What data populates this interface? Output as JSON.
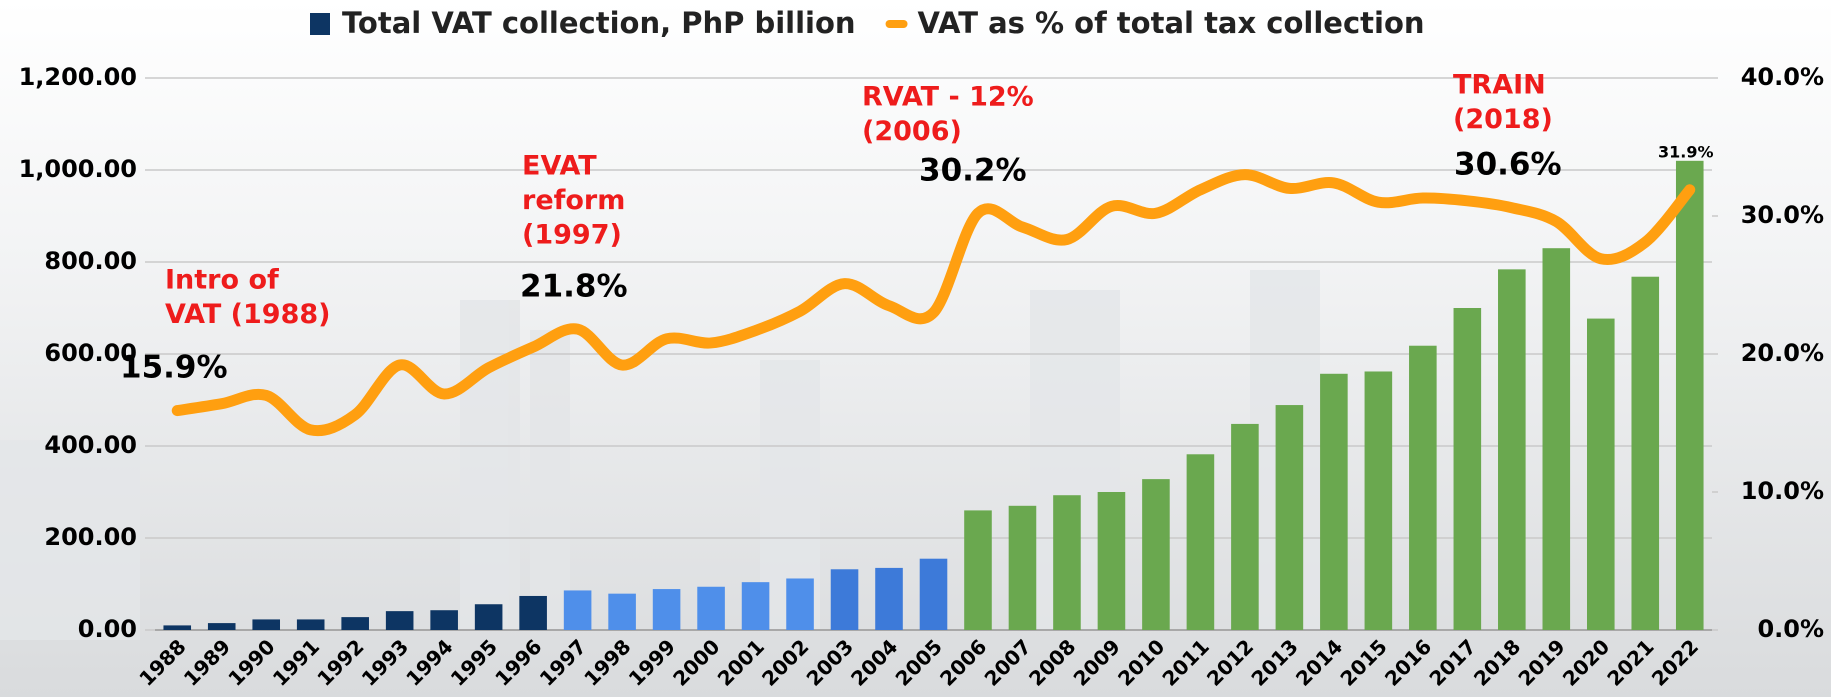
{
  "chart_data": {
    "type": "bar-line",
    "categories": [
      "1988",
      "1989",
      "1990",
      "1991",
      "1992",
      "1993",
      "1994",
      "1995",
      "1996",
      "1997",
      "1998",
      "1999",
      "2000",
      "2001",
      "2002",
      "2003",
      "2004",
      "2005",
      "2006",
      "2007",
      "2008",
      "2009",
      "2010",
      "2011",
      "2012",
      "2013",
      "2014",
      "2015",
      "2016",
      "2017",
      "2018",
      "2019",
      "2020",
      "2021",
      "2022"
    ],
    "series": [
      {
        "name": "Total VAT collection, PhP billion",
        "type": "bar",
        "color": "#0d3563",
        "colors": [
          "#0d3563",
          "#0d3563",
          "#0d3563",
          "#0d3563",
          "#0d3563",
          "#0d3563",
          "#0d3563",
          "#0d3563",
          "#0d3563",
          "#4f8fea",
          "#4f8fea",
          "#4f8fea",
          "#4f8fea",
          "#4f8fea",
          "#4f8fea",
          "#3d7ad9",
          "#3d7ad9",
          "#3d7ad9",
          "#6aa84f",
          "#6aa84f",
          "#6aa84f",
          "#6aa84f",
          "#6aa84f",
          "#6aa84f",
          "#6aa84f",
          "#6aa84f",
          "#6aa84f",
          "#6aa84f",
          "#6aa84f",
          "#6aa84f",
          "#6aa84f",
          "#6aa84f",
          "#6aa84f",
          "#6aa84f",
          "#6aa84f"
        ],
        "values": [
          10,
          15,
          23,
          23,
          28,
          41,
          43,
          56,
          74,
          86,
          79,
          89,
          94,
          104,
          112,
          132,
          135,
          155,
          260,
          270,
          293,
          300,
          328,
          382,
          448,
          489,
          557,
          562,
          618,
          700,
          784,
          830,
          677,
          768,
          1020
        ]
      },
      {
        "name": "VAT as % of total tax collection",
        "type": "line",
        "color": "#ff9f10",
        "axis": "y2",
        "values": [
          15.9,
          16.4,
          17.0,
          14.5,
          15.6,
          19.2,
          17.1,
          19.0,
          20.5,
          21.8,
          19.2,
          21.1,
          20.8,
          21.7,
          23.1,
          25.1,
          23.5,
          23.0,
          30.2,
          29.2,
          28.3,
          30.7,
          30.2,
          31.9,
          33.0,
          32.0,
          32.4,
          31.0,
          31.3,
          31.1,
          30.6,
          29.6,
          26.9,
          28.1,
          31.9
        ],
        "value_labels": [
          "15.9%",
          null,
          null,
          null,
          null,
          null,
          null,
          null,
          null,
          "21.8%",
          null,
          null,
          null,
          null,
          null,
          null,
          null,
          null,
          "30.2%",
          null,
          null,
          null,
          null,
          null,
          null,
          null,
          null,
          null,
          null,
          null,
          "30.6%",
          null,
          null,
          null,
          "31.9%"
        ]
      }
    ],
    "ylim": [
      0,
      1200
    ],
    "yticks": [
      {
        "value": 0,
        "label": "0.00"
      },
      {
        "value": 200,
        "label": "200.00"
      },
      {
        "value": 400,
        "label": "400.00"
      },
      {
        "value": 600,
        "label": "600.00"
      },
      {
        "value": 800,
        "label": "800.00"
      },
      {
        "value": 1000,
        "label": "1,000.00"
      },
      {
        "value": 1200,
        "label": "1,200.00"
      }
    ],
    "y2lim": [
      0,
      40
    ],
    "y2ticks": [
      {
        "value": 0,
        "label": "0.0%"
      },
      {
        "value": 10,
        "label": "10.0%"
      },
      {
        "value": 20,
        "label": "20.0%"
      },
      {
        "value": 30,
        "label": "30.0%"
      },
      {
        "value": 40,
        "label": "40.0%"
      }
    ],
    "grid": true,
    "legend": "top",
    "annotations": [
      {
        "lines": [
          "Intro of",
          "VAT (1988)"
        ]
      },
      {
        "lines": [
          "EVAT",
          "reform",
          "(1997)"
        ]
      },
      {
        "lines": [
          "RVAT - 12%",
          "(2006)"
        ]
      },
      {
        "lines": [
          "TRAIN",
          "(2018)"
        ]
      }
    ]
  }
}
